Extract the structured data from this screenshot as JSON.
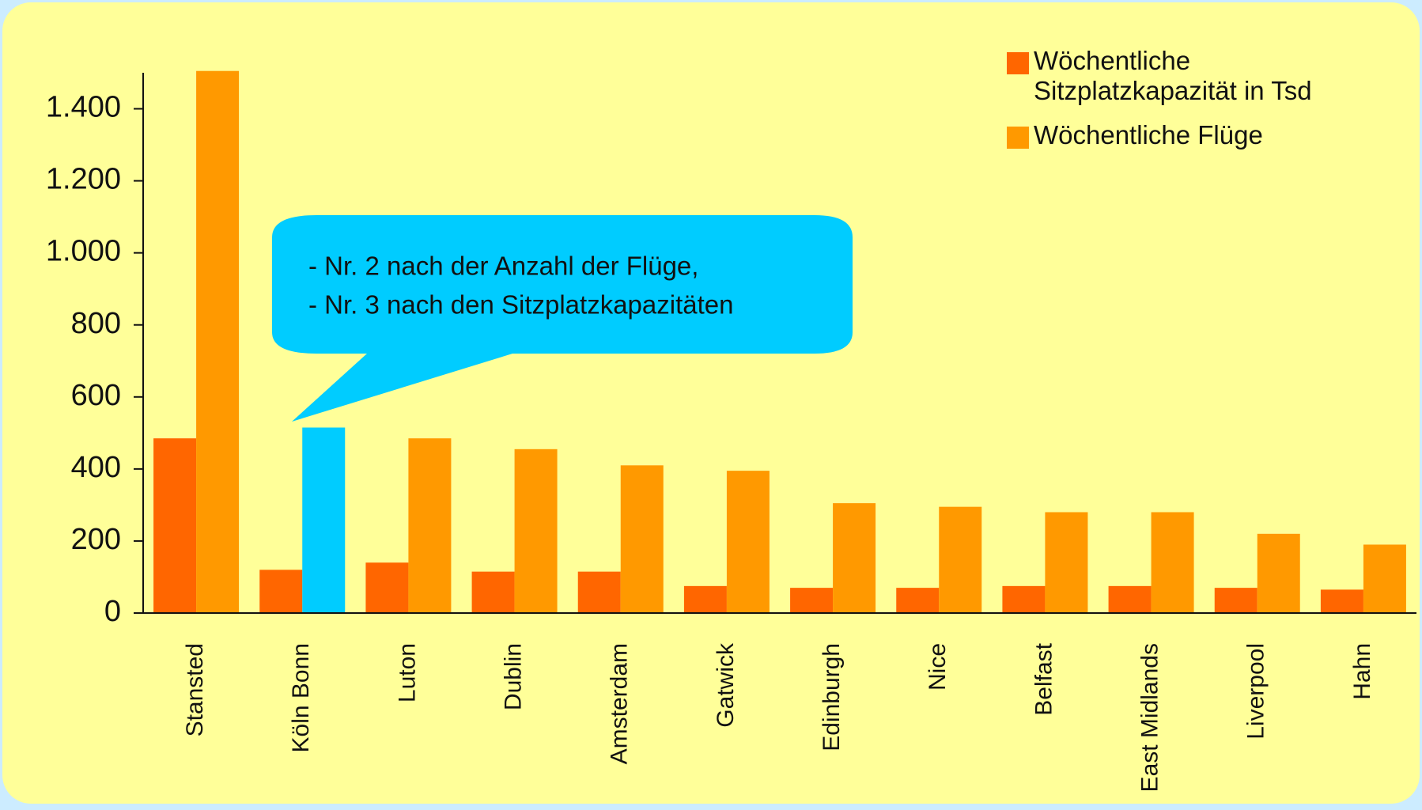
{
  "chart_data": {
    "type": "bar",
    "categories": [
      "Stansted",
      "Köln Bonn",
      "Luton",
      "Dublin",
      "Amsterdam",
      "Gatwick",
      "Edinburgh",
      "Nice",
      "Belfast",
      "East Midlands",
      "Liverpool",
      "Hahn"
    ],
    "series": [
      {
        "name": "Wöchentliche Sitzplatzkapazität in Tsd",
        "color": "#ff6600",
        "values": [
          485,
          120,
          140,
          115,
          115,
          75,
          70,
          70,
          75,
          75,
          70,
          65
        ]
      },
      {
        "name": "Wöchentliche Flüge",
        "color": "#ff9900",
        "colors": [
          "#ff9900",
          "#00ccff",
          "#ff9900",
          "#ff9900",
          "#ff9900",
          "#ff9900",
          "#ff9900",
          "#ff9900",
          "#ff9900",
          "#ff9900",
          "#ff9900",
          "#ff9900"
        ],
        "values": [
          1505,
          515,
          485,
          455,
          410,
          395,
          305,
          295,
          280,
          280,
          220,
          190
        ]
      }
    ],
    "ylim": [
      0,
      1500
    ],
    "yticks": [
      0,
      200,
      400,
      600,
      800,
      {
        "value": 1000,
        "label": "1.000"
      },
      {
        "value": 1200,
        "label": "1.200"
      },
      {
        "value": 1400,
        "label": "1.400"
      }
    ],
    "annotations": [
      "- Nr. 2 nach der Anzahl der Flüge,",
      "- Nr. 3 nach den Sitzplatzkapazitäten"
    ],
    "legend": "top-right"
  }
}
